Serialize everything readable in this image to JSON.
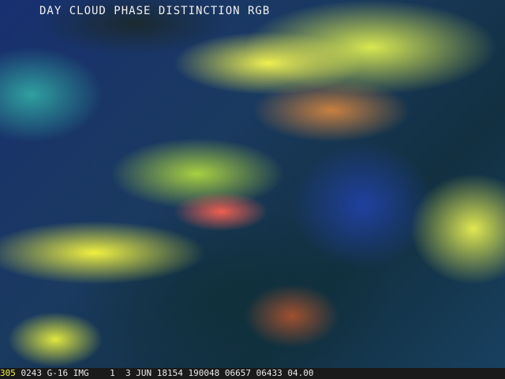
{
  "title": "DAY CLOUD PHASE DISTINCTION RGB",
  "status_bar": {
    "frame": "305",
    "band_id": "0243",
    "satellite": "G-16",
    "type": "IMG",
    "num": "1",
    "date": "3 JUN 18154",
    "time": "190048",
    "line": "06657",
    "element": "06433",
    "resolution": "04.00"
  },
  "colors": {
    "frame_number": "#f0f040",
    "text": "#e8e8e8"
  }
}
